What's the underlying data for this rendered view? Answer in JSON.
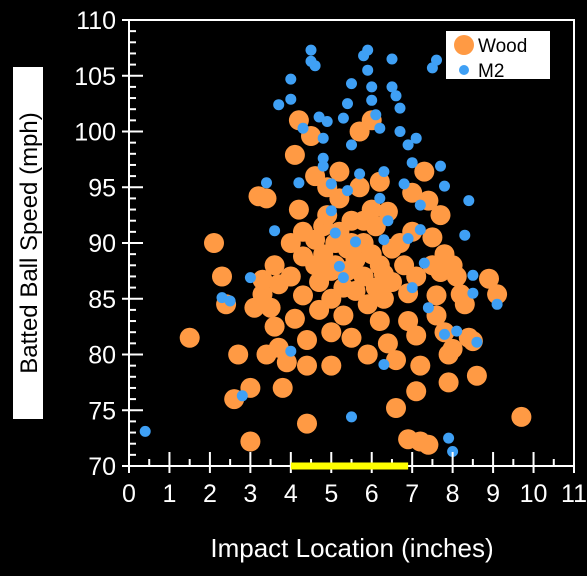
{
  "chart_data": {
    "type": "scatter",
    "title": "",
    "xlabel": "Impact Location (inches)",
    "ylabel": "Batted Ball Speed (mph)",
    "xlim": [
      0,
      11
    ],
    "ylim": [
      70,
      110
    ],
    "x_ticks": [
      "0",
      "1",
      "2",
      "3",
      "4",
      "5",
      "6",
      "7",
      "8",
      "9",
      "10",
      "11"
    ],
    "y_ticks": [
      "70",
      "75",
      "80",
      "85",
      "90",
      "95",
      "100",
      "105",
      "110"
    ],
    "grid": false,
    "legend_position": "top-right",
    "highlight_range": {
      "x": [
        4.0,
        6.9
      ],
      "y": 70,
      "color": "#ffff00"
    },
    "series": [
      {
        "name": "Wood",
        "color": "#ff9a44",
        "points": [
          [
            2.1,
            90.0
          ],
          [
            2.3,
            87.0
          ],
          [
            2.4,
            84.5
          ],
          [
            1.5,
            81.5
          ],
          [
            2.7,
            80.0
          ],
          [
            2.6,
            76.0
          ],
          [
            3.0,
            77.0
          ],
          [
            3.0,
            72.2
          ],
          [
            3.1,
            84.2
          ],
          [
            3.3,
            85.4
          ],
          [
            3.3,
            86.7
          ],
          [
            3.4,
            80.0
          ],
          [
            3.2,
            94.2
          ],
          [
            3.4,
            94.0
          ],
          [
            3.6,
            88.0
          ],
          [
            3.7,
            86.3
          ],
          [
            3.5,
            84.2
          ],
          [
            3.6,
            82.5
          ],
          [
            3.7,
            80.6
          ],
          [
            3.9,
            79.3
          ],
          [
            3.8,
            77.0
          ],
          [
            4.0,
            90.0
          ],
          [
            4.0,
            87.0
          ],
          [
            4.1,
            83.2
          ],
          [
            4.1,
            97.9
          ],
          [
            4.2,
            101.0
          ],
          [
            4.2,
            93.0
          ],
          [
            4.3,
            91.0
          ],
          [
            4.3,
            88.8
          ],
          [
            4.3,
            85.3
          ],
          [
            4.4,
            81.3
          ],
          [
            4.4,
            79.0
          ],
          [
            4.4,
            73.8
          ],
          [
            4.5,
            99.6
          ],
          [
            4.6,
            96.0
          ],
          [
            4.6,
            90.3
          ],
          [
            4.6,
            88.0
          ],
          [
            4.7,
            86.5
          ],
          [
            4.7,
            84.0
          ],
          [
            4.8,
            91.5
          ],
          [
            4.8,
            89.0
          ],
          [
            4.9,
            95.0
          ],
          [
            4.9,
            92.5
          ],
          [
            5.0,
            87.5
          ],
          [
            5.0,
            85.0
          ],
          [
            5.0,
            82.0
          ],
          [
            5.0,
            79.0
          ],
          [
            5.1,
            90.0
          ],
          [
            5.1,
            88.0
          ],
          [
            5.2,
            96.4
          ],
          [
            5.2,
            94.0
          ],
          [
            5.2,
            91.0
          ],
          [
            5.3,
            86.0
          ],
          [
            5.3,
            83.5
          ],
          [
            5.4,
            89.5
          ],
          [
            5.4,
            87.5
          ],
          [
            5.5,
            81.5
          ],
          [
            5.5,
            92.0
          ],
          [
            5.5,
            90.0
          ],
          [
            5.6,
            88.5
          ],
          [
            5.6,
            85.7
          ],
          [
            5.7,
            100.0
          ],
          [
            5.7,
            95.0
          ],
          [
            5.8,
            92.0
          ],
          [
            5.8,
            90.0
          ],
          [
            5.8,
            87.0
          ],
          [
            5.9,
            84.5
          ],
          [
            5.9,
            80.0
          ],
          [
            6.0,
            101.0
          ],
          [
            6.0,
            93.0
          ],
          [
            6.0,
            89.0
          ],
          [
            6.1,
            86.0
          ],
          [
            6.1,
            91.5
          ],
          [
            6.2,
            95.5
          ],
          [
            6.2,
            88.0
          ],
          [
            6.2,
            83.0
          ],
          [
            6.3,
            87.2
          ],
          [
            6.3,
            85.0
          ],
          [
            6.4,
            92.8
          ],
          [
            6.4,
            81.0
          ],
          [
            6.5,
            89.5
          ],
          [
            6.5,
            86.5
          ],
          [
            6.6,
            79.5
          ],
          [
            6.6,
            75.2
          ],
          [
            6.7,
            90.0
          ],
          [
            6.8,
            88.0
          ],
          [
            6.9,
            85.5
          ],
          [
            6.9,
            83.0
          ],
          [
            6.9,
            72.4
          ],
          [
            7.0,
            94.5
          ],
          [
            7.0,
            91.0
          ],
          [
            7.1,
            87.0
          ],
          [
            7.1,
            81.7
          ],
          [
            7.2,
            79.0
          ],
          [
            7.2,
            72.2
          ],
          [
            7.3,
            96.4
          ],
          [
            7.4,
            93.8
          ],
          [
            7.5,
            90.5
          ],
          [
            7.5,
            88.0
          ],
          [
            7.6,
            85.3
          ],
          [
            7.6,
            83.5
          ],
          [
            7.7,
            92.5
          ],
          [
            7.7,
            87.4
          ],
          [
            7.8,
            89.0
          ],
          [
            7.8,
            82.0
          ],
          [
            7.9,
            80.0
          ],
          [
            7.9,
            77.5
          ],
          [
            8.0,
            88.0
          ],
          [
            8.1,
            87.0
          ],
          [
            8.2,
            85.4
          ],
          [
            8.3,
            84.5
          ],
          [
            8.4,
            81.5
          ],
          [
            8.5,
            81.2
          ],
          [
            8.6,
            78.1
          ],
          [
            8.9,
            86.8
          ],
          [
            9.1,
            85.4
          ],
          [
            9.7,
            74.4
          ],
          [
            7.4,
            71.9
          ],
          [
            7.1,
            76.7
          ],
          [
            8.0,
            80.5
          ]
        ]
      },
      {
        "name": "M2",
        "color": "#3fa0f5",
        "points": [
          [
            0.4,
            73.1
          ],
          [
            2.3,
            85.1
          ],
          [
            2.5,
            84.8
          ],
          [
            2.8,
            76.3
          ],
          [
            3.0,
            86.9
          ],
          [
            3.4,
            95.4
          ],
          [
            3.6,
            91.1
          ],
          [
            3.7,
            102.4
          ],
          [
            4.0,
            102.9
          ],
          [
            4.0,
            104.7
          ],
          [
            4.0,
            80.3
          ],
          [
            4.2,
            95.4
          ],
          [
            4.3,
            100.3
          ],
          [
            4.5,
            107.3
          ],
          [
            4.5,
            106.3
          ],
          [
            4.6,
            105.9
          ],
          [
            4.7,
            101.3
          ],
          [
            4.8,
            99.4
          ],
          [
            4.8,
            97.6
          ],
          [
            4.9,
            100.9
          ],
          [
            5.0,
            92.9
          ],
          [
            5.0,
            95.3
          ],
          [
            5.1,
            90.9
          ],
          [
            5.2,
            87.9
          ],
          [
            5.3,
            86.9
          ],
          [
            5.3,
            101.2
          ],
          [
            5.4,
            102.5
          ],
          [
            5.5,
            104.3
          ],
          [
            5.5,
            98.8
          ],
          [
            5.5,
            74.4
          ],
          [
            5.6,
            90.1
          ],
          [
            5.7,
            96.2
          ],
          [
            5.8,
            106.8
          ],
          [
            5.9,
            107.3
          ],
          [
            5.9,
            105.5
          ],
          [
            6.0,
            104.0
          ],
          [
            6.0,
            102.8
          ],
          [
            6.1,
            101.5
          ],
          [
            6.2,
            100.3
          ],
          [
            6.2,
            94.0
          ],
          [
            6.3,
            96.4
          ],
          [
            6.3,
            79.1
          ],
          [
            6.4,
            92.0
          ],
          [
            6.5,
            106.5
          ],
          [
            6.5,
            104.0
          ],
          [
            6.6,
            103.2
          ],
          [
            6.7,
            102.1
          ],
          [
            6.7,
            100.0
          ],
          [
            6.8,
            95.3
          ],
          [
            6.9,
            90.4
          ],
          [
            6.9,
            98.8
          ],
          [
            7.0,
            97.2
          ],
          [
            7.0,
            86.0
          ],
          [
            7.1,
            99.4
          ],
          [
            7.2,
            93.4
          ],
          [
            7.2,
            91.2
          ],
          [
            7.3,
            88.2
          ],
          [
            7.4,
            84.2
          ],
          [
            7.5,
            105.7
          ],
          [
            7.6,
            106.4
          ],
          [
            7.7,
            96.9
          ],
          [
            7.8,
            95.1
          ],
          [
            7.8,
            81.8
          ],
          [
            7.9,
            72.5
          ],
          [
            8.0,
            71.3
          ],
          [
            8.1,
            82.1
          ],
          [
            8.3,
            90.7
          ],
          [
            8.4,
            93.8
          ],
          [
            8.5,
            87.1
          ],
          [
            8.5,
            85.5
          ],
          [
            8.6,
            81.1
          ],
          [
            9.1,
            84.5
          ],
          [
            6.3,
            90.3
          ],
          [
            5.4,
            94.7
          ],
          [
            4.8,
            96.9
          ]
        ]
      }
    ]
  }
}
